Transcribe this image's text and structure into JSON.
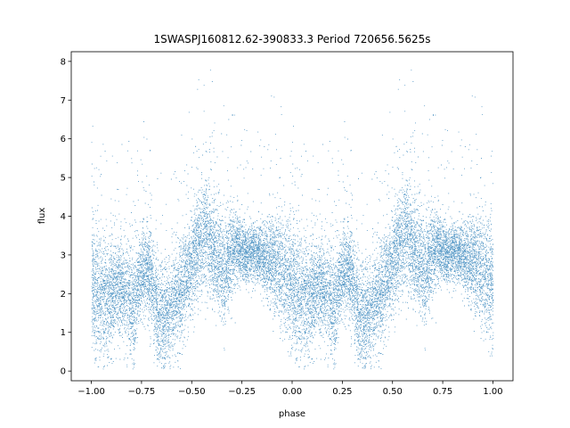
{
  "chart_data": {
    "type": "scatter",
    "title": "1SWASPJ160812.62-390833.3 Period 720656.5625s",
    "xlabel": "phase",
    "ylabel": "flux",
    "xlim": [
      -1.1,
      1.1
    ],
    "ylim": [
      -0.25,
      8.25
    ],
    "xticks": [
      -1.0,
      -0.75,
      -0.5,
      -0.25,
      0.0,
      0.25,
      0.5,
      0.75,
      1.0
    ],
    "xtick_labels": [
      "−1.00",
      "−0.75",
      "−0.50",
      "−0.25",
      "0.00",
      "0.25",
      "0.50",
      "0.75",
      "1.00"
    ],
    "yticks": [
      0,
      1,
      2,
      3,
      4,
      5,
      6,
      7,
      8
    ],
    "ytick_labels": [
      "0",
      "1",
      "2",
      "3",
      "4",
      "5",
      "6",
      "7",
      "8"
    ],
    "grid": false,
    "legend": "none",
    "point_color": "#1f77b4",
    "profile": {
      "phase": [
        0.0,
        0.03,
        0.06,
        0.09,
        0.12,
        0.15,
        0.18,
        0.21,
        0.24,
        0.27,
        0.3,
        0.33,
        0.36,
        0.39,
        0.42,
        0.45,
        0.48,
        0.51,
        0.54,
        0.57,
        0.6,
        0.63,
        0.66,
        0.69,
        0.72,
        0.75,
        0.78,
        0.81,
        0.84,
        0.87,
        0.9,
        0.93,
        0.96,
        1.0
      ],
      "flux_mean": [
        2.2,
        2.0,
        1.8,
        1.9,
        2.1,
        2.2,
        2.0,
        1.7,
        2.4,
        2.6,
        2.3,
        1.5,
        1.4,
        1.6,
        1.8,
        2.1,
        2.5,
        3.0,
        3.3,
        3.6,
        3.1,
        2.8,
        2.5,
        3.0,
        3.2,
        3.1,
        3.0,
        3.1,
        3.0,
        2.9,
        2.8,
        2.7,
        2.5,
        2.2
      ],
      "flux_spread": [
        1.0,
        1.1,
        1.0,
        1.0,
        0.9,
        0.8,
        0.9,
        1.0,
        0.8,
        0.7,
        0.8,
        0.9,
        0.9,
        0.9,
        0.9,
        0.9,
        0.8,
        0.8,
        0.9,
        1.0,
        0.9,
        0.9,
        0.9,
        0.8,
        0.6,
        0.5,
        0.5,
        0.5,
        0.5,
        0.6,
        0.8,
        1.0,
        1.0,
        1.0
      ]
    },
    "n_points": 9000
  }
}
